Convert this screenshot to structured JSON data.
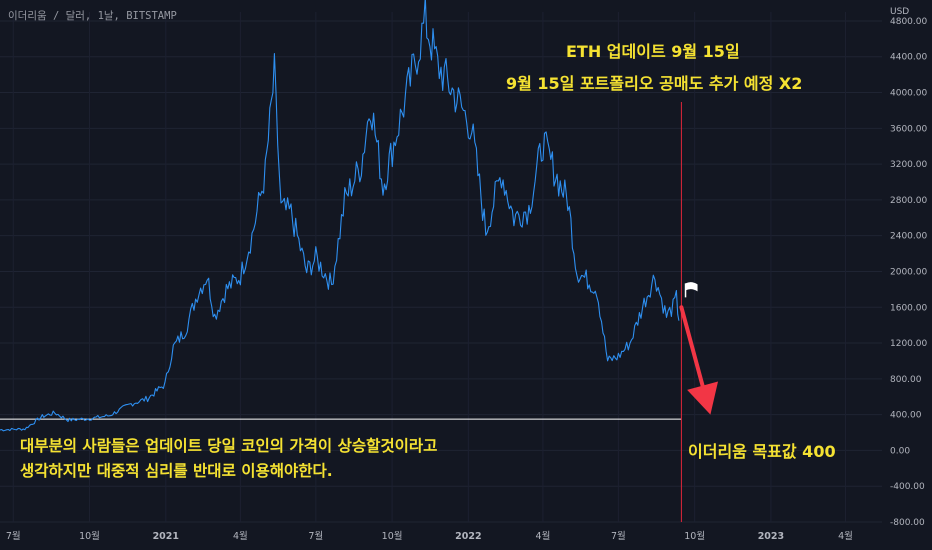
{
  "header": {
    "symbol": "이더리움 / 달러, 1날, BITSTAMP"
  },
  "annotations": {
    "top_line_1": "ETH 업데이트 9월 15일",
    "top_line_2": "9월 15일 포트폴리오 공매도 추가 예정 X2",
    "bottom_line_1": "대부분의 사람들은 업데이트 당일 코인의 가격이 상승할것이라고",
    "bottom_line_2": "생각하지만 대중적 심리를 반대로 이용해야한다.",
    "target": "이더리움 목표값 400"
  },
  "colors": {
    "background": "#131722",
    "price_line": "#2e8ff0",
    "annotation_text": "#f5e232",
    "vertical_line": "#e0263a",
    "arrow": "#f23645",
    "support_line": "#ffffff",
    "axis_text": "#b2b5be"
  },
  "icons": {
    "flag": "white-flag-icon",
    "arrow": "down-arrow-icon"
  },
  "chart_data": {
    "type": "line",
    "title": "",
    "xlabel": "",
    "ylabel": "",
    "currency_label": "USD",
    "ylim": [
      -800,
      4900
    ],
    "y_ticks": [
      -800,
      -400,
      0,
      400,
      800,
      1200,
      1600,
      2000,
      2400,
      2800,
      3200,
      3600,
      4000,
      4400,
      4800
    ],
    "y_tick_labels": [
      "-800.00",
      "-400.00",
      "0.00",
      "400.00",
      "800.00",
      "1200.00",
      "1600.00",
      "2000.00",
      "2400.00",
      "2800.00",
      "3200.00",
      "3600.00",
      "4000.00",
      "4400.00",
      "4800.00"
    ],
    "xlim": [
      "2020-06-15",
      "2023-05-15"
    ],
    "x_ticks": [
      {
        "label": "7월",
        "date": "2020-07-01",
        "strong": false
      },
      {
        "label": "10월",
        "date": "2020-10-01",
        "strong": false
      },
      {
        "label": "2021",
        "date": "2021-01-01",
        "strong": true
      },
      {
        "label": "4월",
        "date": "2021-04-01",
        "strong": false
      },
      {
        "label": "7월",
        "date": "2021-07-01",
        "strong": false
      },
      {
        "label": "10월",
        "date": "2021-10-01",
        "strong": false
      },
      {
        "label": "2022",
        "date": "2022-01-01",
        "strong": true
      },
      {
        "label": "4월",
        "date": "2022-04-01",
        "strong": false
      },
      {
        "label": "7월",
        "date": "2022-07-01",
        "strong": false
      },
      {
        "label": "10월",
        "date": "2022-10-01",
        "strong": false
      },
      {
        "label": "2023",
        "date": "2023-01-01",
        "strong": true
      },
      {
        "label": "4월",
        "date": "2023-04-01",
        "strong": false
      }
    ],
    "series": [
      {
        "points": [
          [
            "2020-06-15",
            230
          ],
          [
            "2020-07-15",
            240
          ],
          [
            "2020-08-05",
            380
          ],
          [
            "2020-08-20",
            420
          ],
          [
            "2020-09-05",
            340
          ],
          [
            "2020-10-01",
            355
          ],
          [
            "2020-10-25",
            390
          ],
          [
            "2020-11-20",
            520
          ],
          [
            "2020-12-10",
            580
          ],
          [
            "2020-12-31",
            740
          ],
          [
            "2021-01-10",
            1150
          ],
          [
            "2021-01-25",
            1350
          ],
          [
            "2021-02-08",
            1750
          ],
          [
            "2021-02-20",
            1950
          ],
          [
            "2021-03-01",
            1500
          ],
          [
            "2021-03-15",
            1800
          ],
          [
            "2021-04-01",
            1950
          ],
          [
            "2021-04-15",
            2400
          ],
          [
            "2021-05-01",
            3100
          ],
          [
            "2021-05-12",
            4200
          ],
          [
            "2021-05-20",
            2700
          ],
          [
            "2021-06-01",
            2650
          ],
          [
            "2021-06-20",
            2000
          ],
          [
            "2021-07-01",
            2150
          ],
          [
            "2021-07-20",
            1850
          ],
          [
            "2021-08-05",
            2800
          ],
          [
            "2021-08-25",
            3200
          ],
          [
            "2021-09-05",
            3900
          ],
          [
            "2021-09-20",
            2950
          ],
          [
            "2021-10-05",
            3500
          ],
          [
            "2021-10-25",
            4200
          ],
          [
            "2021-11-10",
            4800
          ],
          [
            "2021-11-25",
            4300
          ],
          [
            "2021-12-05",
            4150
          ],
          [
            "2021-12-20",
            3900
          ],
          [
            "2022-01-05",
            3600
          ],
          [
            "2022-01-22",
            2450
          ],
          [
            "2022-02-10",
            3100
          ],
          [
            "2022-02-25",
            2600
          ],
          [
            "2022-03-15",
            2700
          ],
          [
            "2022-04-01",
            3450
          ],
          [
            "2022-04-20",
            3000
          ],
          [
            "2022-05-01",
            2800
          ],
          [
            "2022-05-12",
            2000
          ],
          [
            "2022-05-25",
            1900
          ],
          [
            "2022-06-05",
            1800
          ],
          [
            "2022-06-18",
            1000
          ],
          [
            "2022-07-01",
            1050
          ],
          [
            "2022-07-15",
            1200
          ],
          [
            "2022-08-01",
            1650
          ],
          [
            "2022-08-14",
            1950
          ],
          [
            "2022-08-28",
            1500
          ],
          [
            "2022-09-05",
            1600
          ],
          [
            "2022-09-09",
            1700
          ],
          [
            "2022-09-12",
            1450
          ]
        ]
      }
    ],
    "support_level": 350,
    "support_start": "2020-06-15",
    "support_end": "2022-09-15",
    "event_date": "2022-09-15",
    "arrow_from": {
      "date": "2022-09-15",
      "value": 1600
    },
    "arrow_to": {
      "date": "2022-10-20",
      "value": 400
    },
    "flag_at": {
      "date": "2022-09-20",
      "value": 1800
    }
  }
}
